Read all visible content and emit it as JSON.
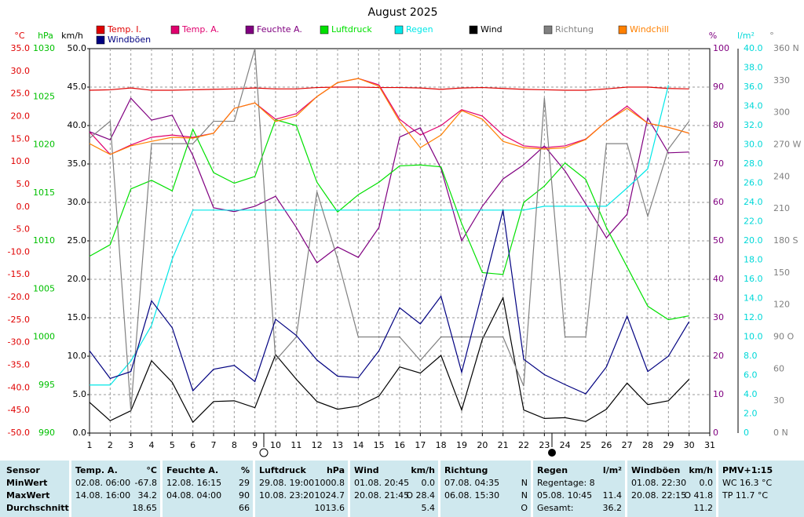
{
  "chart_data": {
    "type": "line",
    "title": "August 2025",
    "x": [
      1,
      2,
      3,
      4,
      5,
      6,
      7,
      8,
      9,
      10,
      11,
      12,
      13,
      14,
      15,
      16,
      17,
      18,
      19,
      20,
      21,
      22,
      23,
      24,
      25,
      26,
      27,
      28,
      29,
      30
    ],
    "xlim": [
      1,
      31
    ],
    "xticks": [
      1,
      2,
      3,
      4,
      5,
      6,
      7,
      8,
      9,
      10,
      11,
      12,
      13,
      14,
      15,
      16,
      17,
      18,
      19,
      20,
      21,
      22,
      23,
      24,
      25,
      26,
      27,
      28,
      29,
      30,
      31
    ],
    "grid": true,
    "axes": {
      "temp": {
        "label": "°C",
        "color": "#e00000",
        "lim": [
          -50,
          35
        ],
        "ticks": [
          {
            "value": 35,
            "label": "35.0"
          },
          {
            "value": 30,
            "label": "30.0"
          },
          {
            "value": 25,
            "label": "25.0"
          },
          {
            "value": 20,
            "label": "20.0"
          },
          {
            "value": 15,
            "label": "15.0"
          },
          {
            "value": 10,
            "label": "10.0"
          },
          {
            "value": 5,
            "label": "5.0"
          },
          {
            "value": 0,
            "label": "0.0"
          },
          {
            "value": -5,
            "label": "-5.0"
          },
          {
            "value": -10,
            "label": "-10.0"
          },
          {
            "value": -15,
            "label": "-15.0"
          },
          {
            "value": -20,
            "label": "-20.0"
          },
          {
            "value": -25,
            "label": "-25.0"
          },
          {
            "value": -30,
            "label": "-30.0"
          },
          {
            "value": -35,
            "label": "-35.0"
          },
          {
            "value": -40,
            "label": "-40.0"
          },
          {
            "value": -45,
            "label": "-45.0"
          },
          {
            "value": -50,
            "label": "-50.0"
          }
        ]
      },
      "hpa": {
        "label": "hPa",
        "color": "#00c000",
        "lim": [
          990,
          1030
        ],
        "ticks": [
          1030,
          1025,
          1020,
          1015,
          1010,
          1005,
          1000,
          995,
          990
        ]
      },
      "wind": {
        "label": "km/h",
        "color": "#000000",
        "lim": [
          0,
          50
        ],
        "ticks": [
          {
            "value": 50,
            "label": "50.0"
          },
          {
            "value": 45,
            "label": "45.0"
          },
          {
            "value": 40,
            "label": "40.0"
          },
          {
            "value": 35,
            "label": "35.0"
          },
          {
            "value": 30,
            "label": "30.0"
          },
          {
            "value": 25,
            "label": "25.0"
          },
          {
            "value": 20,
            "label": "20.0"
          },
          {
            "value": 15,
            "label": "15.0"
          },
          {
            "value": 10,
            "label": "10.0"
          },
          {
            "value": 5,
            "label": "5.0"
          },
          {
            "value": 0,
            "label": "0.0"
          }
        ]
      },
      "pct": {
        "label": "%",
        "color": "#800080",
        "lim": [
          0,
          100
        ],
        "ticks": [
          100,
          90,
          80,
          70,
          60,
          50,
          40,
          30,
          20,
          10,
          0
        ]
      },
      "rain": {
        "label": "l/m²",
        "color": "#00d8d8",
        "lim": [
          0,
          40
        ],
        "ticks": [
          {
            "value": 40,
            "label": "40.0"
          },
          {
            "value": 38,
            "label": "38.0"
          },
          {
            "value": 36,
            "label": "36.0"
          },
          {
            "value": 34,
            "label": "34.0"
          },
          {
            "value": 32,
            "label": "32.0"
          },
          {
            "value": 30,
            "label": "30.0"
          },
          {
            "value": 28,
            "label": "28.0"
          },
          {
            "value": 26,
            "label": "26.0"
          },
          {
            "value": 24,
            "label": "24.0"
          },
          {
            "value": 22,
            "label": "22.0"
          },
          {
            "value": 20,
            "label": "20.0"
          },
          {
            "value": 18,
            "label": "18.0"
          },
          {
            "value": 16,
            "label": "16.0"
          },
          {
            "value": 14,
            "label": "14.0"
          },
          {
            "value": 12,
            "label": "12.0"
          },
          {
            "value": 10,
            "label": "10.0"
          },
          {
            "value": 8,
            "label": "8.0"
          },
          {
            "value": 6,
            "label": "6.0"
          },
          {
            "value": 4,
            "label": "4.0"
          },
          {
            "value": 2,
            "label": "2.0"
          },
          {
            "value": 0,
            "label": "0"
          }
        ]
      },
      "dir": {
        "label": "°",
        "color": "#808080",
        "lim": [
          0,
          360
        ],
        "ticks": [
          {
            "value": 360,
            "label": "360 N"
          },
          330,
          300,
          {
            "value": 270,
            "label": "270 W"
          },
          240,
          210,
          {
            "value": 180,
            "label": "180 S"
          },
          150,
          120,
          {
            "value": 90,
            "label": "90  O"
          },
          60,
          30,
          {
            "value": 0,
            "label": "0   N"
          }
        ]
      }
    },
    "series": [
      {
        "name": "Temp. I.",
        "color": "#e00000",
        "axis": "temp",
        "values": [
          25.8,
          25.9,
          26.3,
          25.8,
          25.8,
          25.9,
          26.0,
          26.1,
          26.3,
          26.1,
          26.1,
          26.4,
          26.5,
          26.5,
          26.4,
          26.4,
          26.3,
          26.0,
          26.3,
          26.4,
          26.2,
          26.0,
          25.9,
          25.8,
          25.8,
          26.1,
          26.5,
          26.5,
          26.2,
          26.1
        ]
      },
      {
        "name": "Temp. A.",
        "color": "#e0006e",
        "axis": "temp",
        "values": [
          16.6,
          11.6,
          13.7,
          15.4,
          15.9,
          15.4,
          16.3,
          21.8,
          23.0,
          19.4,
          20.6,
          24.4,
          27.5,
          28.4,
          27.0,
          19.4,
          15.9,
          18.0,
          21.5,
          20.1,
          15.9,
          13.5,
          13.1,
          13.5,
          15.0,
          18.9,
          22.3,
          18.5,
          17.6,
          16.3
        ]
      },
      {
        "name": "Feuchte A.",
        "color": "#800080",
        "axis": "pct",
        "values": [
          78.4,
          76.3,
          87.1,
          81.4,
          82.7,
          72.2,
          58.6,
          57.6,
          59,
          61.6,
          53.5,
          44.3,
          48.4,
          45.7,
          53.5,
          77,
          79.4,
          68.8,
          50,
          59,
          66.1,
          69.8,
          74.7,
          68.2,
          59.6,
          50.8,
          56.9,
          82,
          72.9,
          73.1
        ]
      },
      {
        "name": "Luftdruck",
        "color": "#00e000",
        "axis": "hpa",
        "values": [
          1008.4,
          1009.6,
          1015.4,
          1016.3,
          1015.2,
          1021.6,
          1017.1,
          1016.0,
          1016.7,
          1022.6,
          1022.0,
          1016.1,
          1013.0,
          1014.8,
          1016.1,
          1017.8,
          1017.9,
          1017.7,
          1011.8,
          1006.7,
          1006.5,
          1014.0,
          1015.7,
          1018.1,
          1016.4,
          1011.4,
          1007.3,
          1003.2,
          1001.8,
          1002.2
        ]
      },
      {
        "name": "Regen",
        "color": "#00e8e8",
        "axis": "rain",
        "values": [
          5.0,
          5.0,
          7.5,
          11.2,
          18.1,
          23.2,
          23.2,
          23.2,
          23.2,
          23.2,
          23.2,
          23.2,
          23.2,
          23.2,
          23.2,
          23.2,
          23.2,
          23.2,
          23.2,
          23.2,
          23.2,
          23.2,
          23.6,
          23.6,
          23.6,
          23.6,
          25.5,
          27.5,
          36.2,
          null
        ]
      },
      {
        "name": "Wind",
        "color": "#000000",
        "axis": "wind",
        "values": [
          4.0,
          1.6,
          2.9,
          9.4,
          6.6,
          1.4,
          4.1,
          4.2,
          3.3,
          10.2,
          7.0,
          4.1,
          3.1,
          3.5,
          4.8,
          8.6,
          7.8,
          10.1,
          3.0,
          12.2,
          17.6,
          3.0,
          1.9,
          2.0,
          1.5,
          3.1,
          6.5,
          3.7,
          4.2,
          7.0
        ]
      },
      {
        "name": "Richtung",
        "color": "#808080",
        "axis": "dir",
        "values": [
          276,
          292,
          21,
          271,
          271,
          271,
          292,
          292,
          360,
          68,
          90,
          226,
          163,
          90,
          90,
          90,
          68,
          90,
          90,
          90,
          90,
          44,
          314,
          90,
          90,
          271,
          271,
          203,
          266,
          292
        ]
      },
      {
        "name": "Windchill",
        "color": "#ff8000",
        "axis": "temp",
        "values": [
          14.0,
          11.6,
          13.5,
          14.5,
          15.4,
          15.2,
          16.3,
          21.8,
          23,
          18.9,
          20.1,
          24.4,
          27.5,
          28.4,
          26.7,
          18.9,
          13.1,
          15.9,
          21.3,
          19.4,
          14.5,
          13.1,
          12.8,
          13.1,
          14.9,
          18.9,
          21.8,
          18.5,
          17.6,
          16.3
        ]
      },
      {
        "name": "Windböen",
        "color": "#000080",
        "axis": "wind",
        "values": [
          10.7,
          7.1,
          8.0,
          17.2,
          13.7,
          5.5,
          8.3,
          8.8,
          6.7,
          14.8,
          12.7,
          9.5,
          7.4,
          7.2,
          10.7,
          16.3,
          14.2,
          17.8,
          7.9,
          18.4,
          29.0,
          9.6,
          7.6,
          6.3,
          5.1,
          8.6,
          15.2,
          8.0,
          10.0,
          14.5
        ]
      }
    ]
  },
  "table": {
    "groups": [
      {
        "header": [
          "Sensor"
        ],
        "rows": [
          [
            "MinWert"
          ],
          [
            "MaxWert"
          ],
          [
            "Durchschnitt"
          ]
        ]
      },
      {
        "header": [
          "Temp. A.",
          "°C"
        ],
        "rows": [
          [
            "02.08. 06:00",
            "-67.8"
          ],
          [
            "14.08. 16:00",
            "34.2"
          ],
          [
            null,
            "18.65"
          ]
        ]
      },
      {
        "header": [
          "Feuchte A.",
          "%"
        ],
        "rows": [
          [
            "12.08. 16:15",
            "29"
          ],
          [
            "04.08. 04:00",
            "90"
          ],
          [
            null,
            "66"
          ]
        ]
      },
      {
        "header": [
          "Luftdruck",
          "hPa"
        ],
        "rows": [
          [
            "29.08. 19:00",
            "1000.8"
          ],
          [
            "10.08. 23:20",
            "1024.7"
          ],
          [
            null,
            "1013.6"
          ]
        ]
      },
      {
        "header": [
          "Wind",
          "km/h"
        ],
        "rows": [
          [
            "01.08. 20:45",
            "0.0"
          ],
          [
            "20.08. 21:45",
            "O 28.4"
          ],
          [
            null,
            "5.4"
          ]
        ]
      },
      {
        "header": [
          "Richtung"
        ],
        "rows": [
          [
            "07.08. 04:35",
            "N"
          ],
          [
            "06.08. 15:30",
            "N"
          ],
          [
            null,
            "O"
          ]
        ]
      },
      {
        "header": [
          "Regen",
          "l/m²"
        ],
        "rows": [
          [
            "Regentage: 8",
            null
          ],
          [
            "05.08. 10:45",
            "11.4"
          ],
          [
            "Gesamt:",
            "36.2"
          ]
        ]
      },
      {
        "header": [
          "Windböen",
          "km/h"
        ],
        "rows": [
          [
            "01.08. 22:30",
            "0.0"
          ],
          [
            "20.08. 22:15",
            "O 41.8"
          ],
          [
            null,
            "11.2"
          ]
        ]
      },
      {
        "header": [
          "PMV+1:15"
        ],
        "rows": [
          [
            "WC 16.3 °C"
          ],
          [
            "TP 11.7 °C"
          ],
          []
        ]
      }
    ]
  }
}
